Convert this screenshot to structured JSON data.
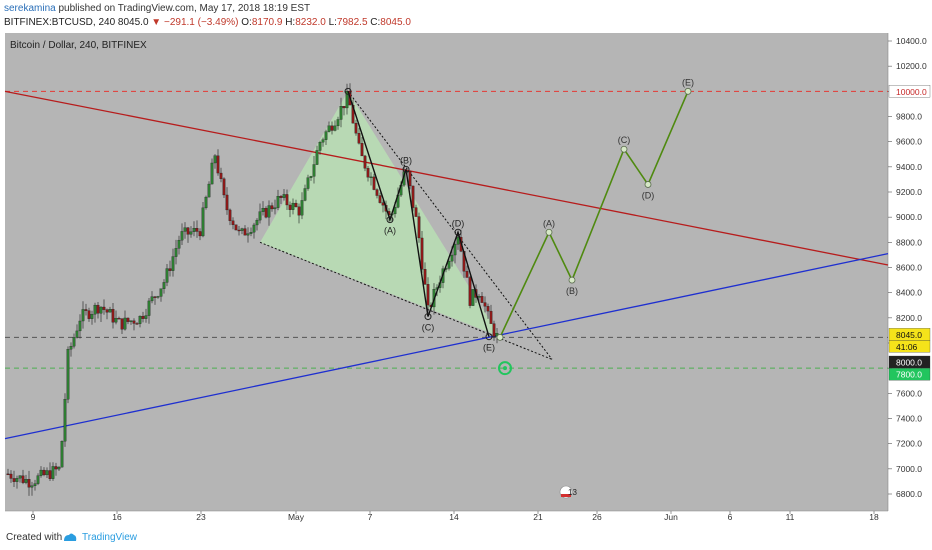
{
  "header": {
    "author": "serekamina",
    "published_text": "published on TradingView.com, May 17, 2018 18:19 EST",
    "symbol": "BITFINEX:BTCUSD, 240",
    "last": "8045.0",
    "change_arrow": "▼",
    "change": "−291.1 (−3.49%)",
    "o_label": "O:",
    "o": "8170.9",
    "h_label": "H:",
    "h": "8232.0",
    "l_label": "L:",
    "l": "7982.5",
    "c_label": "C:",
    "c": "8045.0"
  },
  "footer": {
    "created": "Created with",
    "brand": "TradingView"
  },
  "chart_data": {
    "type": "candlestick",
    "title": "Bitcoin / Dollar, 240, BITFINEX",
    "y_ticks": [
      "10400.0",
      "10200.0",
      "10000.0",
      "9800.0",
      "9600.0",
      "9400.0",
      "9200.0",
      "9000.0",
      "8800.0",
      "8600.0",
      "8400.0",
      "8200.0",
      "8000.0",
      "7800.0",
      "7600.0",
      "7400.0",
      "7200.0",
      "7000.0",
      "6800.0"
    ],
    "ylim": [
      6630,
      10450
    ],
    "x_ticks": [
      "9",
      "16",
      "23",
      "May",
      "7",
      "14",
      "21",
      "26",
      "Jun",
      "6",
      "11",
      "18"
    ],
    "price_labels": {
      "last": "8045.0",
      "countdown": "41:06",
      "level_8000": "8000.0",
      "level_7800": "7800.0",
      "level_10000": "10000.0"
    },
    "horizontal_levels": [
      {
        "value": 10000,
        "color": "#e53935",
        "style": "dashed"
      },
      {
        "value": 8045,
        "color": "#555555",
        "style": "dashed"
      },
      {
        "value": 7800,
        "color": "#4caf50",
        "style": "dashed"
      }
    ],
    "wave_labels_completed": [
      "(A)",
      "(B)",
      "(C)",
      "(D)",
      "(E)"
    ],
    "wave_labels_projected": [
      "(A)",
      "(B)",
      "(C)",
      "(D)",
      "(E)"
    ],
    "projection_points": [
      {
        "label": "",
        "value": 8045
      },
      {
        "label": "(A)",
        "value": 8880
      },
      {
        "label": "(B)",
        "value": 8500
      },
      {
        "label": "(C)",
        "value": 9540
      },
      {
        "label": "(D)",
        "value": 9260
      },
      {
        "label": "(E)",
        "value": 10000
      }
    ],
    "completed_points": [
      {
        "label": "",
        "value": 10000
      },
      {
        "label": "(A)",
        "value": 8980
      },
      {
        "label": "(B)",
        "value": 9380
      },
      {
        "label": "(C)",
        "value": 8210
      },
      {
        "label": "(D)",
        "value": 8880
      },
      {
        "label": "(E)",
        "value": 8050
      }
    ],
    "badge": "13",
    "colors": {
      "background": "#b5b5b5",
      "up": "#2e7d32",
      "down": "#8b1a1a",
      "red_trend": "#b71c1c",
      "blue_trend": "#1e2fd0",
      "projection": "#4f8a10",
      "triangle_fill": "#b9e6b4"
    }
  }
}
